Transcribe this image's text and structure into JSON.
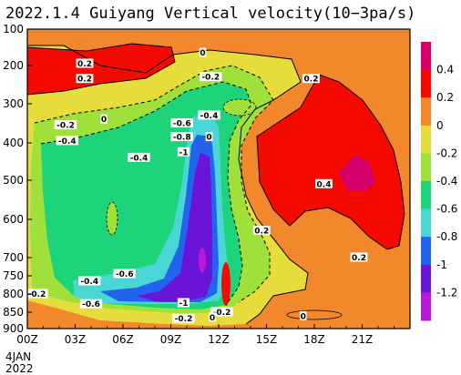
{
  "chart_data": {
    "type": "heatmap",
    "title": "2022.1.4 Guiyang Vertical velocity(10−3pa/s)",
    "x_tick_labels": [
      "00Z",
      "03Z",
      "06Z",
      "09Z",
      "12Z",
      "15Z",
      "18Z",
      "21Z"
    ],
    "x_date_labels": [
      "4JAN",
      "2022"
    ],
    "xlim_hours": [
      0,
      24
    ],
    "y_tick_labels": [
      "100",
      "200",
      "300",
      "400",
      "500",
      "600",
      "700",
      "750",
      "800",
      "850",
      "900"
    ],
    "ylim_hpa": [
      100,
      900
    ],
    "colorbar": {
      "levels": [
        "0.4",
        "0.2",
        "0",
        "-0.2",
        "-0.4",
        "-0.6",
        "-0.8",
        "-1",
        "-1.2"
      ],
      "colors": [
        "#d6006b",
        "#f50a00",
        "#f2872c",
        "#e6dd3c",
        "#9fe03a",
        "#1ed47a",
        "#4bd6d6",
        "#2264ec",
        "#6a14d8",
        "#b51ad6"
      ]
    },
    "contour_labels": [
      {
        "text": "0.2",
        "x": 3.6,
        "p": 195
      },
      {
        "text": "0.2",
        "x": 3.6,
        "p": 235
      },
      {
        "text": "0",
        "x": 11.0,
        "p": 165
      },
      {
        "text": "-0.2",
        "x": 11.5,
        "p": 230
      },
      {
        "text": "0.2",
        "x": 17.8,
        "p": 235
      },
      {
        "text": "0",
        "x": 4.8,
        "p": 340
      },
      {
        "text": "-0.6",
        "x": 9.7,
        "p": 350
      },
      {
        "text": "-0.4",
        "x": 11.4,
        "p": 330
      },
      {
        "text": "-0.2",
        "x": 2.4,
        "p": 355
      },
      {
        "text": "-0.8",
        "x": 9.7,
        "p": 385
      },
      {
        "text": "0",
        "x": 11.4,
        "p": 385
      },
      {
        "text": "-0.4",
        "x": 2.5,
        "p": 395
      },
      {
        "text": "-1",
        "x": 9.8,
        "p": 425
      },
      {
        "text": "-0.4",
        "x": 7.0,
        "p": 440
      },
      {
        "text": "0.4",
        "x": 18.6,
        "p": 510
      },
      {
        "text": "0.2",
        "x": 14.7,
        "p": 630
      },
      {
        "text": "0.2",
        "x": 20.8,
        "p": 700
      },
      {
        "text": "-0.4",
        "x": 3.9,
        "p": 765
      },
      {
        "text": "-0.6",
        "x": 6.1,
        "p": 745
      },
      {
        "text": "-0.2",
        "x": 0.6,
        "p": 800
      },
      {
        "text": "-0.6",
        "x": 4.0,
        "p": 828
      },
      {
        "text": "-1",
        "x": 9.8,
        "p": 825
      },
      {
        "text": "-0.2",
        "x": 12.2,
        "p": 850
      },
      {
        "text": "0",
        "x": 11.6,
        "p": 866
      },
      {
        "text": "0",
        "x": 17.3,
        "p": 862
      },
      {
        "text": "-0.2",
        "x": 9.8,
        "p": 870
      }
    ]
  }
}
